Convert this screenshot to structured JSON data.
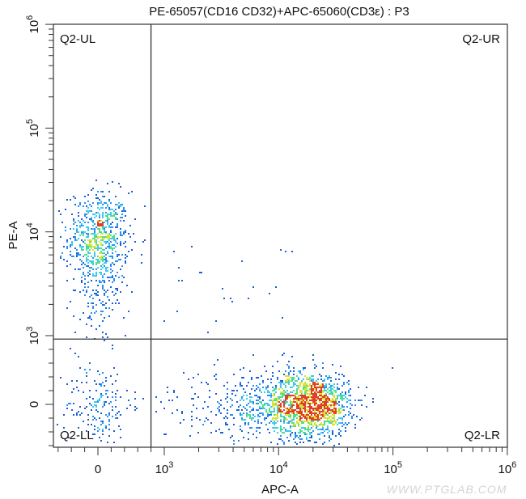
{
  "chart_data": {
    "type": "scatter",
    "title": "PE-65057(CD16 CD32)+APC-65060(CD3ε) : P3",
    "xlabel": "APC-A",
    "ylabel": "PE-A",
    "x_scale": "biexponential",
    "y_scale": "biexponential",
    "x_ticks": [
      {
        "value": 0,
        "label": "0"
      },
      {
        "value": 1000,
        "label": "10",
        "exp": "3"
      },
      {
        "value": 10000,
        "label": "10",
        "exp": "4"
      },
      {
        "value": 100000,
        "label": "10",
        "exp": "5"
      },
      {
        "value": 1000000,
        "label": "10",
        "exp": "6"
      }
    ],
    "y_ticks": [
      {
        "value": 0,
        "label": "0"
      },
      {
        "value": 1000,
        "label": "10",
        "exp": "3"
      },
      {
        "value": 10000,
        "label": "10",
        "exp": "4"
      },
      {
        "value": 100000,
        "label": "10",
        "exp": "5"
      },
      {
        "value": 1000000,
        "label": "10",
        "exp": "6"
      }
    ],
    "xlim": [
      -670,
      1000000
    ],
    "ylim": [
      -620,
      1000000
    ],
    "gates": {
      "x": 800,
      "y": 950
    },
    "quadrants": {
      "ul": "Q2-UL",
      "ur": "Q2-UR",
      "ll": "Q2-LL",
      "lr": "Q2-LR"
    },
    "populations": [
      {
        "apc_center": 0,
        "apc_spread_linear": 230,
        "pe_center": 9000,
        "pe_spread_decades": 0.22,
        "count": 650
      },
      {
        "apc_center": 0,
        "apc_spread_linear": 200,
        "pe_center": 2500,
        "pe_spread_decades": 0.25,
        "count": 150
      },
      {
        "apc_center": 0,
        "apc_spread_linear": 250,
        "pe_center": 0,
        "pe_spread_linear": 300,
        "count": 170
      },
      {
        "apc_center": 19000,
        "apc_spread_decades": 0.17,
        "pe_center": 0,
        "pe_spread_linear": 230,
        "count": 1300
      },
      {
        "apc_center": 8000,
        "apc_spread_decades": 0.3,
        "pe_center": 0,
        "pe_spread_linear": 250,
        "count": 450
      },
      {
        "apc_center": 2500,
        "apc_spread_decades": 0.35,
        "pe_center": 0,
        "pe_spread_linear": 260,
        "count": 60
      }
    ],
    "density_colors": [
      "#1a5fd8",
      "#2a8ff0",
      "#3cc8f0",
      "#4fe08a",
      "#d8e23a",
      "#e0402a"
    ],
    "grid": false
  },
  "watermark": "WWW.PTGLAB.COM"
}
